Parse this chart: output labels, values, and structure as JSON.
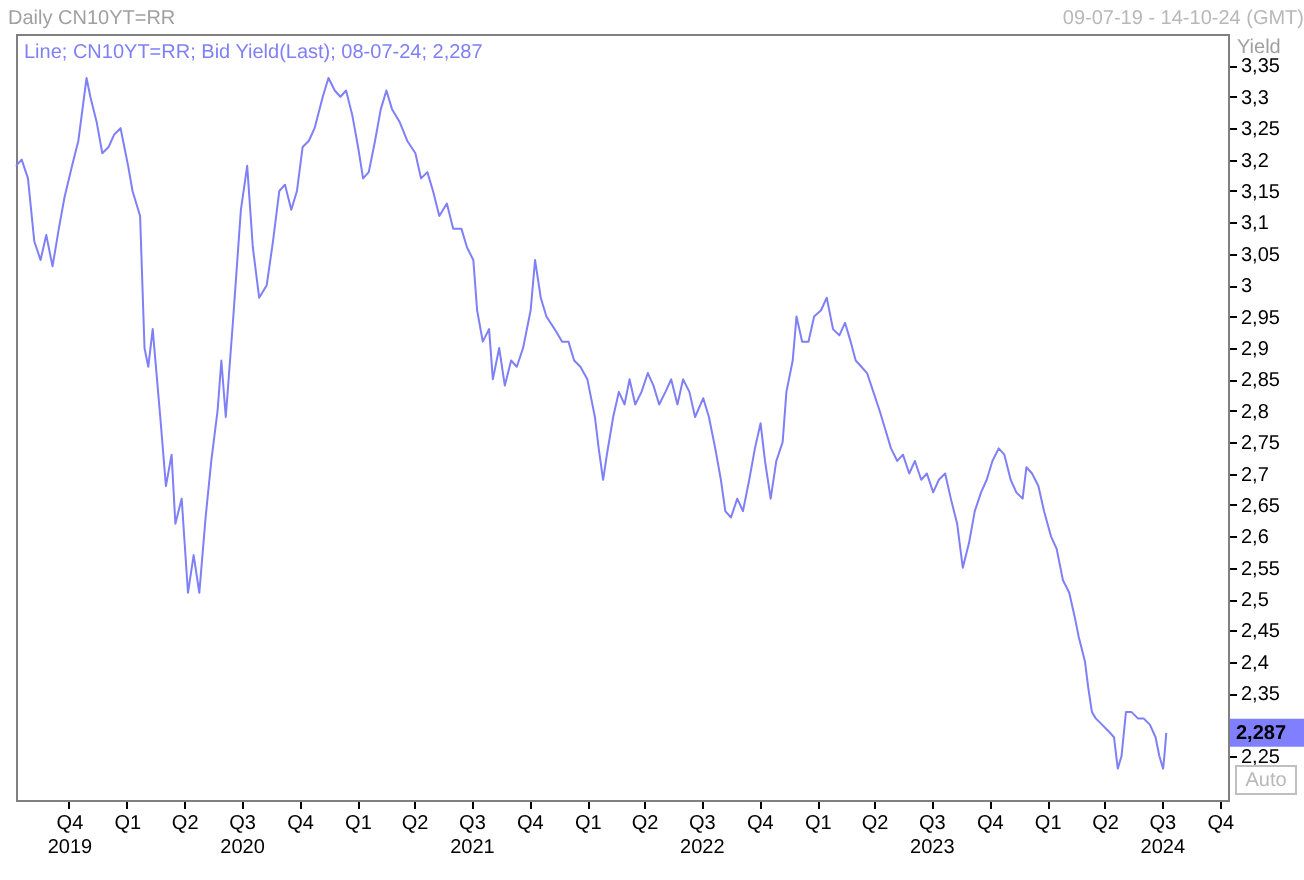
{
  "chart_data": {
    "type": "line",
    "title": "Daily CN10YT=RR",
    "ylabel": "Yield",
    "annotations": [
      "09-07-19 - 14-10-24 (GMT)",
      "Auto",
      "2,287"
    ],
    "legend": "top left",
    "xlim": [
      "2019-07-09",
      "2024-10-14"
    ],
    "ylim": [
      2.18,
      3.4
    ],
    "xticks": [
      {
        "value": "2019-10-01",
        "label": "Q4\n2019"
      },
      {
        "value": "2020-01-01",
        "label": "Q1"
      },
      {
        "value": "2020-04-01",
        "label": "Q2"
      },
      {
        "value": "2020-07-01",
        "label": "Q3\n2020"
      },
      {
        "value": "2020-10-01",
        "label": "Q4"
      },
      {
        "value": "2021-01-01",
        "label": "Q1"
      },
      {
        "value": "2021-04-01",
        "label": "Q2"
      },
      {
        "value": "2021-07-01",
        "label": "Q3\n2021"
      },
      {
        "value": "2021-10-01",
        "label": "Q4"
      },
      {
        "value": "2022-01-01",
        "label": "Q1"
      },
      {
        "value": "2022-04-01",
        "label": "Q2"
      },
      {
        "value": "2022-07-01",
        "label": "Q3\n2022"
      },
      {
        "value": "2022-10-01",
        "label": "Q4"
      },
      {
        "value": "2023-01-01",
        "label": "Q1"
      },
      {
        "value": "2023-04-01",
        "label": "Q2"
      },
      {
        "value": "2023-07-01",
        "label": "Q3\n2023"
      },
      {
        "value": "2023-10-01",
        "label": "Q4"
      },
      {
        "value": "2024-01-01",
        "label": "Q1"
      },
      {
        "value": "2024-04-01",
        "label": "Q2"
      },
      {
        "value": "2024-07-01",
        "label": "Q3\n2024"
      },
      {
        "value": "2024-10-01",
        "label": "Q4"
      }
    ],
    "yticks": [
      {
        "value": 2.25,
        "label": "2,25"
      },
      {
        "value": 2.3,
        "label": null
      },
      {
        "value": 2.35,
        "label": "2,35"
      },
      {
        "value": 2.4,
        "label": "2,4"
      },
      {
        "value": 2.45,
        "label": "2,45"
      },
      {
        "value": 2.5,
        "label": "2,5"
      },
      {
        "value": 2.55,
        "label": "2,55"
      },
      {
        "value": 2.6,
        "label": "2,6"
      },
      {
        "value": 2.65,
        "label": "2,65"
      },
      {
        "value": 2.7,
        "label": "2,7"
      },
      {
        "value": 2.75,
        "label": "2,75"
      },
      {
        "value": 2.8,
        "label": "2,8"
      },
      {
        "value": 2.85,
        "label": "2,85"
      },
      {
        "value": 2.9,
        "label": "2,9"
      },
      {
        "value": 2.95,
        "label": "2,95"
      },
      {
        "value": 3,
        "label": "3"
      },
      {
        "value": 3.05,
        "label": "3,05"
      },
      {
        "value": 3.1,
        "label": "3,1"
      },
      {
        "value": 3.15,
        "label": "3,15"
      },
      {
        "value": 3.2,
        "label": "3,2"
      },
      {
        "value": 3.25,
        "label": "3,25"
      },
      {
        "value": 3.3,
        "label": "3,3"
      },
      {
        "value": 3.35,
        "label": "3,35"
      }
    ],
    "x": [
      "2019-07-09",
      "2019-07-18",
      "2019-07-28",
      "2019-08-07",
      "2019-08-17",
      "2019-08-26",
      "2019-09-05",
      "2019-09-15",
      "2019-09-24",
      "2019-10-06",
      "2019-10-16",
      "2019-10-29",
      "2019-11-04",
      "2019-11-14",
      "2019-11-23",
      "2019-12-03",
      "2019-12-12",
      "2019-12-22",
      "2019-12-28",
      "2020-01-03",
      "2020-01-10",
      "2020-01-22",
      "2020-01-29",
      "2020-02-04",
      "2020-02-11",
      "2020-02-17",
      "2020-02-23",
      "2020-03-03",
      "2020-03-12",
      "2020-03-18",
      "2020-03-28",
      "2020-04-07",
      "2020-04-16",
      "2020-04-25",
      "2020-05-05",
      "2020-05-14",
      "2020-05-24",
      "2020-05-30",
      "2020-06-06",
      "2020-06-18",
      "2020-06-30",
      "2020-07-10",
      "2020-07-19",
      "2020-07-29",
      "2020-08-10",
      "2020-08-20",
      "2020-08-30",
      "2020-09-08",
      "2020-09-18",
      "2020-09-27",
      "2020-10-06",
      "2020-10-16",
      "2020-10-25",
      "2020-11-07",
      "2020-11-16",
      "2020-11-26",
      "2020-12-05",
      "2020-12-14",
      "2020-12-24",
      "2021-01-02",
      "2021-01-10",
      "2021-01-19",
      "2021-01-29",
      "2021-02-07",
      "2021-02-16",
      "2021-02-25",
      "2021-03-09",
      "2021-03-21",
      "2021-04-03",
      "2021-04-12",
      "2021-04-22",
      "2021-05-01",
      "2021-05-11",
      "2021-05-23",
      "2021-06-02",
      "2021-06-15",
      "2021-06-24",
      "2021-07-04",
      "2021-07-10",
      "2021-07-19",
      "2021-07-29",
      "2021-08-04",
      "2021-08-14",
      "2021-08-23",
      "2021-09-02",
      "2021-09-11",
      "2021-09-21",
      "2021-10-03",
      "2021-10-10",
      "2021-10-19",
      "2021-10-28",
      "2021-11-10",
      "2021-11-22",
      "2021-12-02",
      "2021-12-11",
      "2021-12-21",
      "2022-01-01",
      "2022-01-07",
      "2022-01-13",
      "2022-01-19",
      "2022-01-26",
      "2022-02-01",
      "2022-02-11",
      "2022-02-20",
      "2022-03-01",
      "2022-03-09",
      "2022-03-18",
      "2022-03-28",
      "2022-04-07",
      "2022-04-16",
      "2022-04-25",
      "2022-05-05",
      "2022-05-14",
      "2022-05-24",
      "2022-06-02",
      "2022-06-12",
      "2022-06-21",
      "2022-07-04",
      "2022-07-13",
      "2022-07-23",
      "2022-08-01",
      "2022-08-08",
      "2022-08-17",
      "2022-08-27",
      "2022-09-05",
      "2022-09-15",
      "2022-09-24",
      "2022-10-03",
      "2022-10-10",
      "2022-10-19",
      "2022-10-28",
      "2022-11-07",
      "2022-11-13",
      "2022-11-23",
      "2022-11-29",
      "2022-12-08",
      "2022-12-18",
      "2022-12-27",
      "2023-01-07",
      "2023-01-16",
      "2023-01-26",
      "2023-02-05",
      "2023-02-14",
      "2023-02-23",
      "2023-03-03",
      "2023-03-12",
      "2023-03-21",
      "2023-03-31",
      "2023-04-10",
      "2023-04-19",
      "2023-04-28",
      "2023-05-08",
      "2023-05-17",
      "2023-05-27",
      "2023-06-05",
      "2023-06-15",
      "2023-06-24",
      "2023-07-04",
      "2023-07-13",
      "2023-07-23",
      "2023-08-01",
      "2023-08-11",
      "2023-08-20",
      "2023-08-30",
      "2023-09-08",
      "2023-09-18",
      "2023-09-27",
      "2023-10-06",
      "2023-10-16",
      "2023-10-25",
      "2023-11-04",
      "2023-11-13",
      "2023-11-23",
      "2023-11-29",
      "2023-12-08",
      "2023-12-18",
      "2023-12-27",
      "2024-01-07",
      "2024-01-16",
      "2024-01-26",
      "2024-02-05",
      "2024-02-14",
      "2024-02-20",
      "2024-03-01",
      "2024-03-06",
      "2024-03-12",
      "2024-03-18",
      "2024-03-28",
      "2024-04-07",
      "2024-04-16",
      "2024-04-22",
      "2024-04-28",
      "2024-05-05",
      "2024-05-14",
      "2024-05-24",
      "2024-06-02",
      "2024-06-12",
      "2024-06-21",
      "2024-06-27",
      "2024-07-03",
      "2024-07-05",
      "2024-07-08"
    ],
    "series": [
      {
        "name": "Line; CN10YT=RR; Bid Yield(Last); 08-07-24; 2,287",
        "color": "#7f7ff7",
        "values": [
          3.19,
          3.2,
          3.17,
          3.07,
          3.04,
          3.08,
          3.03,
          3.09,
          3.14,
          3.19,
          3.23,
          3.33,
          3.3,
          3.26,
          3.21,
          3.22,
          3.24,
          3.25,
          3.22,
          3.19,
          3.15,
          3.11,
          2.9,
          2.87,
          2.93,
          2.86,
          2.79,
          2.68,
          2.73,
          2.62,
          2.66,
          2.51,
          2.57,
          2.51,
          2.63,
          2.72,
          2.8,
          2.88,
          2.79,
          2.95,
          3.12,
          3.19,
          3.06,
          2.98,
          3.0,
          3.07,
          3.15,
          3.16,
          3.12,
          3.15,
          3.22,
          3.23,
          3.25,
          3.3,
          3.33,
          3.31,
          3.3,
          3.31,
          3.27,
          3.22,
          3.17,
          3.18,
          3.23,
          3.28,
          3.31,
          3.28,
          3.26,
          3.23,
          3.21,
          3.17,
          3.18,
          3.15,
          3.11,
          3.13,
          3.09,
          3.09,
          3.06,
          3.04,
          2.96,
          2.91,
          2.93,
          2.85,
          2.9,
          2.84,
          2.88,
          2.87,
          2.9,
          2.96,
          3.04,
          2.98,
          2.95,
          2.93,
          2.91,
          2.91,
          2.88,
          2.87,
          2.85,
          2.82,
          2.79,
          2.74,
          2.69,
          2.73,
          2.79,
          2.83,
          2.81,
          2.85,
          2.81,
          2.83,
          2.86,
          2.84,
          2.81,
          2.83,
          2.85,
          2.81,
          2.85,
          2.83,
          2.79,
          2.82,
          2.79,
          2.74,
          2.69,
          2.64,
          2.63,
          2.66,
          2.64,
          2.69,
          2.74,
          2.78,
          2.72,
          2.66,
          2.72,
          2.75,
          2.83,
          2.88,
          2.95,
          2.91,
          2.91,
          2.95,
          2.96,
          2.98,
          2.93,
          2.92,
          2.94,
          2.91,
          2.88,
          2.87,
          2.86,
          2.83,
          2.8,
          2.77,
          2.74,
          2.72,
          2.73,
          2.7,
          2.72,
          2.69,
          2.7,
          2.67,
          2.69,
          2.7,
          2.66,
          2.62,
          2.55,
          2.59,
          2.64,
          2.67,
          2.69,
          2.72,
          2.74,
          2.73,
          2.69,
          2.67,
          2.66,
          2.71,
          2.7,
          2.68,
          2.64,
          2.6,
          2.58,
          2.53,
          2.51,
          2.47,
          2.44,
          2.4,
          2.36,
          2.32,
          2.31,
          2.3,
          2.29,
          2.28,
          2.23,
          2.25,
          2.32,
          2.32,
          2.31,
          2.31,
          2.3,
          2.28,
          2.25,
          2.23,
          2.25,
          2.287
        ]
      }
    ]
  }
}
